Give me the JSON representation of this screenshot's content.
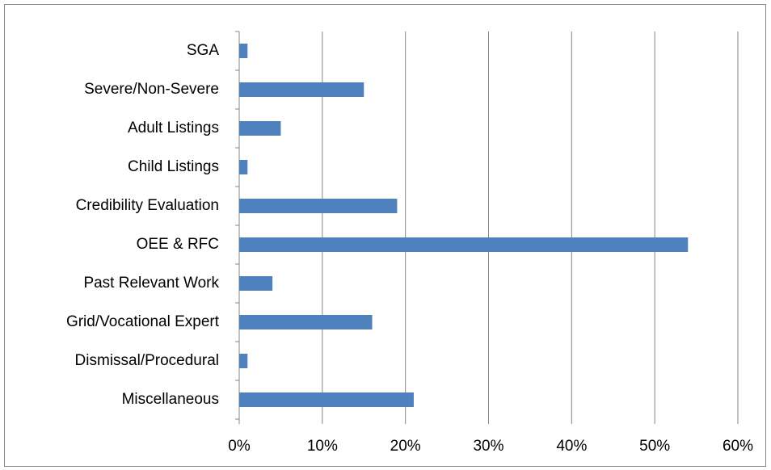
{
  "chart_data": {
    "type": "hbar",
    "categories": [
      "SGA",
      "Severe/Non-Severe",
      "Adult Listings",
      "Child Listings",
      "Credibility Evaluation",
      "OEE & RFC",
      "Past Relevant Work",
      "Grid/Vocational Expert",
      "Dismissal/Procedural",
      "Miscellaneous"
    ],
    "values": [
      1,
      15,
      5,
      1,
      19,
      54,
      4,
      16,
      1,
      21
    ],
    "color": "#4f81bd",
    "xlim": [
      0,
      60
    ],
    "xticks": [
      {
        "value": 0,
        "label": "0%"
      },
      {
        "value": 10,
        "label": "10%"
      },
      {
        "value": 20,
        "label": "20%"
      },
      {
        "value": 30,
        "label": "30%"
      },
      {
        "value": 40,
        "label": "40%"
      },
      {
        "value": 50,
        "label": "50%"
      },
      {
        "value": 60,
        "label": "60%"
      }
    ],
    "grid": true
  }
}
